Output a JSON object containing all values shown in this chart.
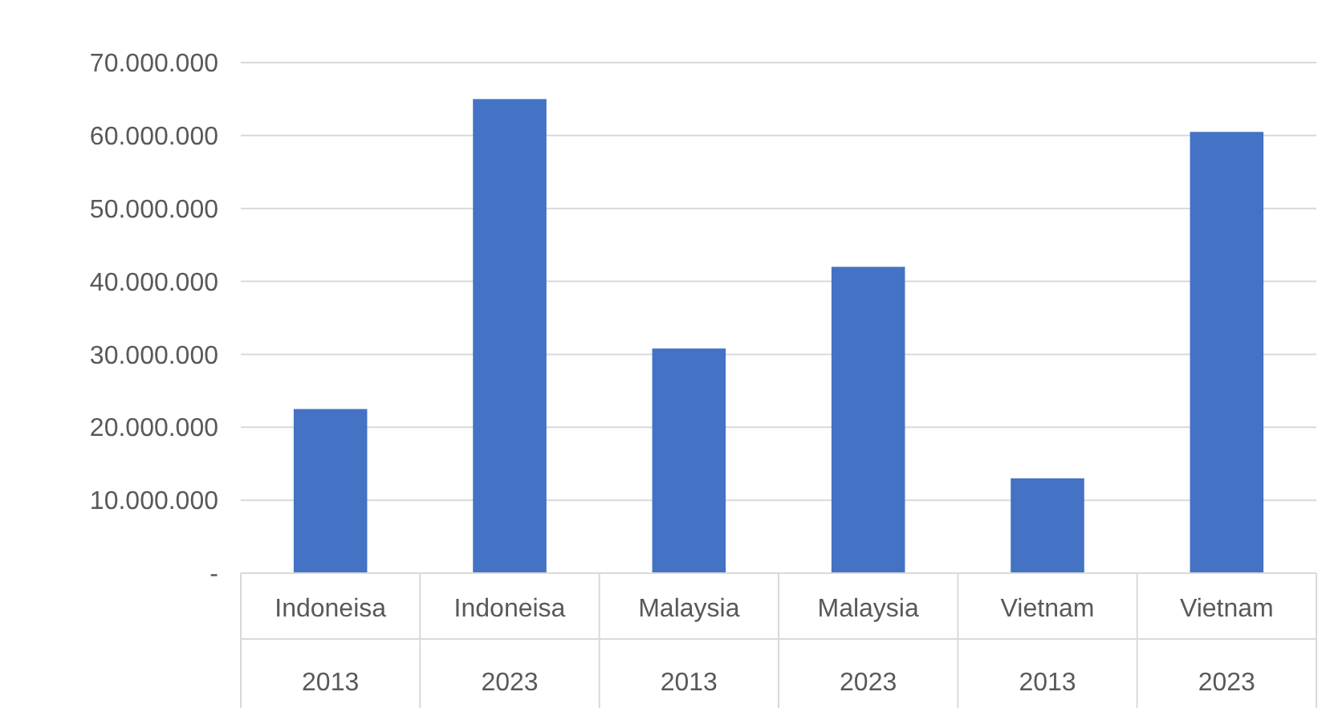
{
  "chart_data": {
    "type": "bar",
    "categories": [
      "Indoneisa 2013",
      "Indoneisa 2023",
      "Malaysia 2013",
      "Malaysia 2023",
      "Vietnam 2013",
      "Vietnam 2023"
    ],
    "values": [
      22500000,
      65000000,
      30800000,
      42000000,
      13000000,
      60500000
    ],
    "color": "#4472c4",
    "ylim": [
      0,
      70000000
    ],
    "yticks": [
      {
        "value": 0,
        "label": "-"
      },
      {
        "value": 10000000,
        "label": "10.000.000"
      },
      {
        "value": 20000000,
        "label": "20.000.000"
      },
      {
        "value": 30000000,
        "label": "30.000.000"
      },
      {
        "value": 40000000,
        "label": "40.000.000"
      },
      {
        "value": 50000000,
        "label": "50.000.000"
      },
      {
        "value": 60000000,
        "label": "60.000.000"
      },
      {
        "value": 70000000,
        "label": "70.000.000"
      }
    ],
    "grid": "y"
  }
}
